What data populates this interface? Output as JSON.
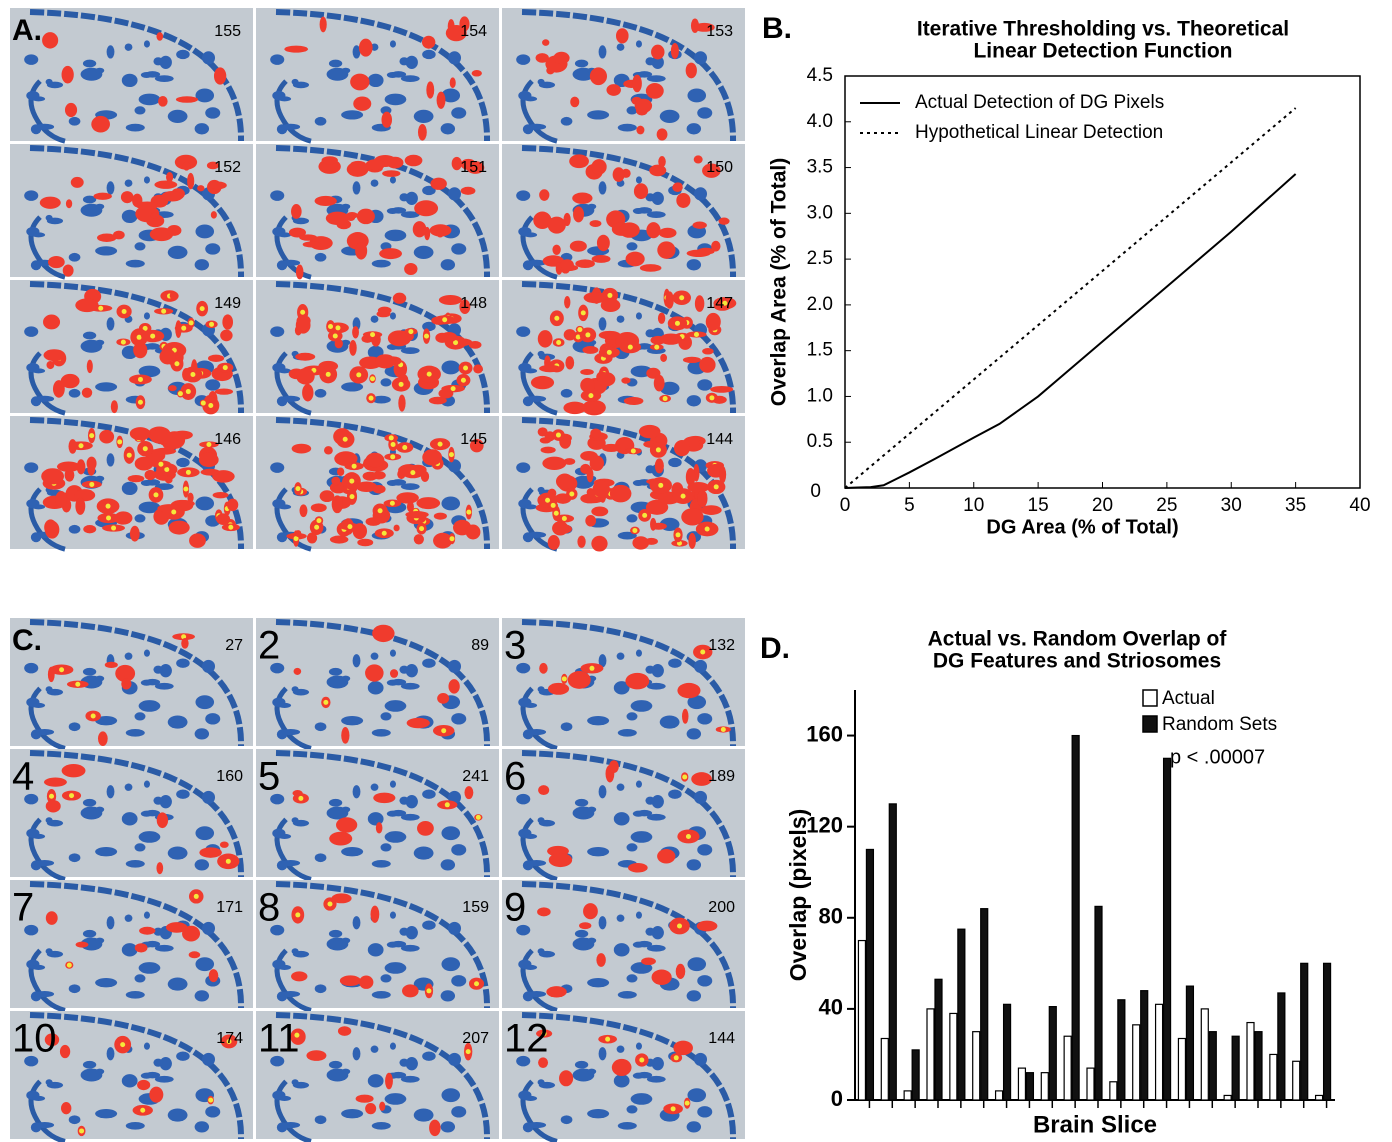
{
  "panel_a": {
    "label": "A.",
    "tiles": [
      155,
      154,
      153,
      152,
      151,
      150,
      149,
      148,
      147,
      146,
      145,
      144
    ]
  },
  "panel_c": {
    "label": "C.",
    "tiles": [
      {
        "index": null,
        "count": 27
      },
      {
        "index": 2,
        "count": 89
      },
      {
        "index": 3,
        "count": 132
      },
      {
        "index": 4,
        "count": 160
      },
      {
        "index": 5,
        "count": 241
      },
      {
        "index": 6,
        "count": 189
      },
      {
        "index": 7,
        "count": 171
      },
      {
        "index": 8,
        "count": 159
      },
      {
        "index": 9,
        "count": 200
      },
      {
        "index": 10,
        "count": 174
      },
      {
        "index": 11,
        "count": 207
      },
      {
        "index": 12,
        "count": 144
      }
    ]
  },
  "chart_data": [
    {
      "type": "line",
      "panel_label": "B.",
      "title": [
        "Iterative Thresholding vs. Theoretical",
        "Linear Detection Function"
      ],
      "xlabel": "DG Area (% of Total)",
      "ylabel": "Overlap Area (% of Total)",
      "xlim": [
        0,
        40
      ],
      "xticks": [
        0,
        5,
        10,
        15,
        20,
        25,
        30,
        35,
        40
      ],
      "ylim": [
        0,
        4.5
      ],
      "yticks": [
        0,
        0.5,
        {
          "value": 1,
          "label": "1.0"
        },
        1.5,
        {
          "value": 2,
          "label": "2.0"
        },
        2.5,
        {
          "value": 3,
          "label": "3.0"
        },
        3.5,
        {
          "value": 4,
          "label": "4.0"
        },
        4.5
      ],
      "legend": "upper left",
      "series": [
        {
          "name": "Actual Detection of DG Pixels",
          "color": "#000000",
          "style": "solid",
          "x": [
            0,
            1,
            2,
            3,
            4,
            5,
            7,
            10,
            12,
            15,
            20,
            25,
            30,
            35
          ],
          "values": [
            0,
            0.005,
            0.01,
            0.03,
            0.1,
            0.17,
            0.32,
            0.55,
            0.7,
            1.0,
            1.6,
            2.2,
            2.8,
            3.43
          ]
        },
        {
          "name": "Hypothetical Linear Detection",
          "color": "#000000",
          "style": "dotted",
          "x": [
            0,
            35
          ],
          "values": [
            0,
            4.15
          ]
        }
      ]
    },
    {
      "type": "bar",
      "panel_label": "D.",
      "title": [
        "Actual vs. Random Overlap of",
        "DG Features and Striosomes"
      ],
      "xlabel": "Brain Slice",
      "ylabel": "Overlap (pixels)",
      "annotation": "p < .00007",
      "legend": "upper right",
      "categories": [
        null,
        null,
        null,
        null,
        null,
        null,
        null,
        null,
        null,
        null,
        null,
        null,
        null,
        null,
        null,
        null,
        null,
        null,
        null,
        null,
        null
      ],
      "ylim": [
        0,
        180
      ],
      "yticks": [
        0,
        40,
        80,
        120,
        160
      ],
      "series": [
        {
          "name": "Actual",
          "color": "#ffffff",
          "values": [
            70,
            27,
            4,
            40,
            38,
            30,
            4,
            14,
            12,
            28,
            14,
            8,
            33,
            42,
            27,
            40,
            2,
            34,
            20,
            17,
            2
          ]
        },
        {
          "name": "Random Sets",
          "color": "#111111",
          "values": [
            110,
            130,
            22,
            53,
            75,
            84,
            42,
            12,
            41,
            160,
            85,
            44,
            48,
            150,
            50,
            30,
            28,
            30,
            47,
            60,
            60
          ]
        }
      ]
    }
  ]
}
